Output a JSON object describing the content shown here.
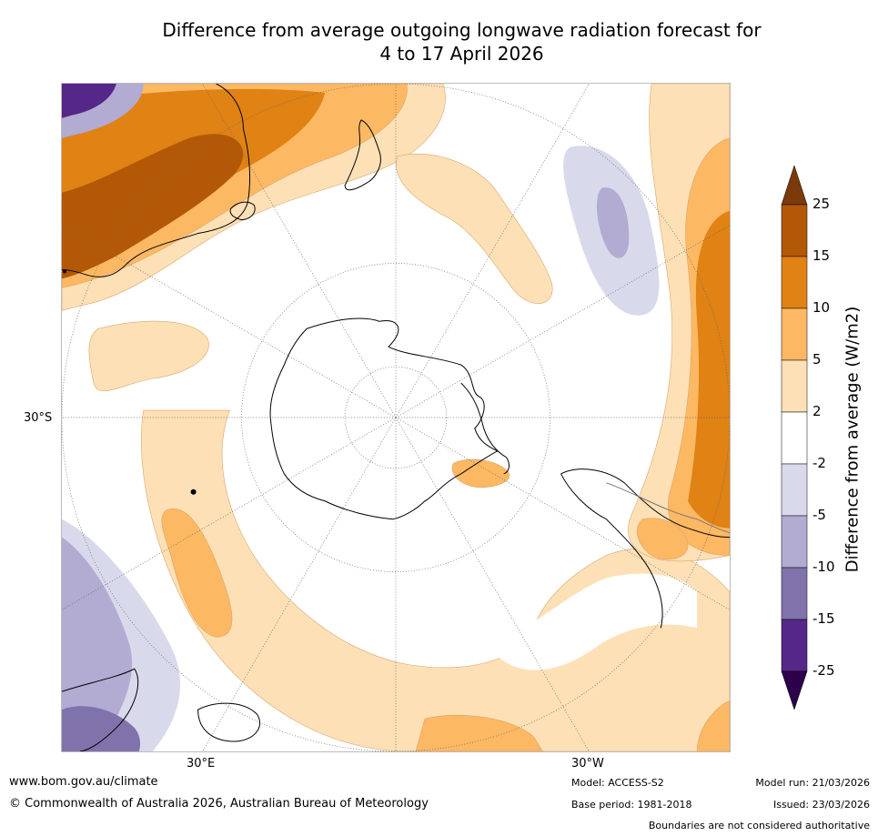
{
  "title": {
    "line1": "Difference from average outgoing longwave radiation forecast for",
    "line2": "4 to 17 April 2026"
  },
  "map": {
    "projection_center": "South Pole",
    "lat_label_left": "30°S",
    "lon_labels": [
      "30°E",
      "30°W"
    ],
    "land_outline_color": "#000000",
    "grid_color": "#666666"
  },
  "colorbar": {
    "title": "Difference from average (W/m2)",
    "extend": "both",
    "bins": [
      {
        "range": "above 25",
        "color": "#7a3a0a"
      },
      {
        "range": "15 to 25",
        "color": "#b35806"
      },
      {
        "range": "10 to 15",
        "color": "#e08214"
      },
      {
        "range": "5 to 10",
        "color": "#fdb863"
      },
      {
        "range": "2 to 5",
        "color": "#fee0b6"
      },
      {
        "range": "-2 to 2",
        "color": "#ffffff"
      },
      {
        "range": "-5 to -2",
        "color": "#d8daeb"
      },
      {
        "range": "-10 to -5",
        "color": "#b2abd2"
      },
      {
        "range": "-15 to -10",
        "color": "#8073ac"
      },
      {
        "range": "-25 to -15",
        "color": "#542788"
      },
      {
        "range": "below -25",
        "color": "#2d004b"
      }
    ],
    "tick_labels": [
      "25",
      "15",
      "10",
      "5",
      "2",
      "-2",
      "-5",
      "-10",
      "-15",
      "-25"
    ]
  },
  "footer": {
    "url": "www.bom.gov.au/climate",
    "copyright": "© Commonwealth of Australia 2026, Australian Bureau of Meteorology",
    "model": "Model: ACCESS-S2",
    "base_period": "Base period: 1981-2018",
    "model_run": "Model run: 21/03/2026",
    "issued": "Issued: 23/03/2026",
    "disclaimer": "Boundaries are not considered authoritative"
  }
}
